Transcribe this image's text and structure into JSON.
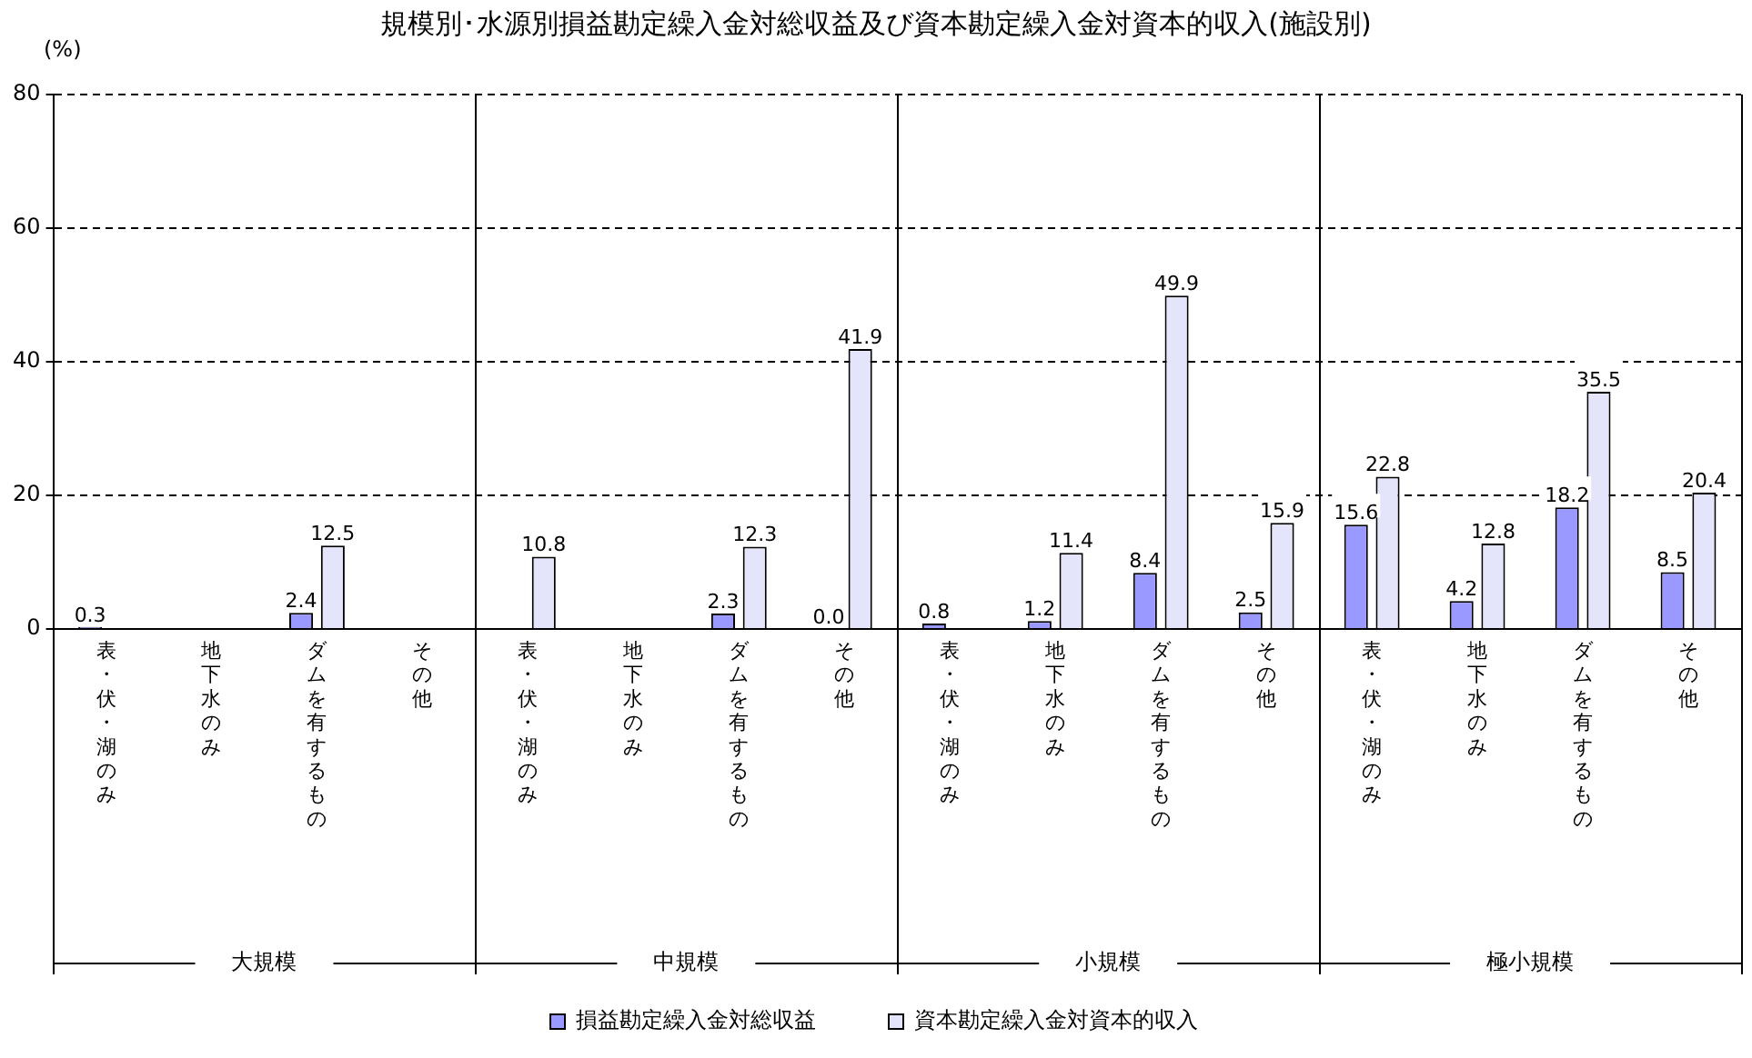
{
  "chart_data": {
    "type": "bar",
    "title": "規模別･水源別損益勘定繰入金対総収益及び資本勘定繰入金対資本的収入(施設別)",
    "ylabel": "(%)",
    "categories": [
      "表・伏・湖のみ",
      "地下水のみ",
      "ダムを有するもの",
      "その他",
      "表・伏・湖のみ",
      "地下水のみ",
      "ダムを有するもの",
      "その他",
      "表・伏・湖のみ",
      "地下水のみ",
      "ダムを有するもの",
      "その他",
      "表・伏・湖のみ",
      "地下水のみ",
      "ダムを有するもの",
      "その他"
    ],
    "series": [
      {
        "name": "損益勘定繰入金対総収益",
        "color": "#9999ff",
        "values": [
          0.3,
          null,
          2.4,
          null,
          null,
          null,
          2.3,
          0.0,
          0.8,
          1.2,
          8.4,
          2.5,
          15.6,
          4.2,
          18.2,
          8.5
        ],
        "value_labels": [
          "0.3",
          null,
          "2.4",
          null,
          null,
          null,
          "2.3",
          "0.0",
          "0.8",
          "1.2",
          "8.4",
          "2.5",
          "15.6",
          "4.2",
          "18.2",
          "8.5"
        ]
      },
      {
        "name": "資本勘定繰入金対資本的収入",
        "color": "#e4e4fa",
        "values": [
          null,
          null,
          12.5,
          null,
          10.8,
          null,
          12.3,
          41.9,
          null,
          11.4,
          49.9,
          15.9,
          22.8,
          12.8,
          35.5,
          20.4
        ],
        "value_labels": [
          null,
          null,
          "12.5",
          null,
          "10.8",
          null,
          "12.3",
          "41.9",
          null,
          "11.4",
          "49.9",
          "15.9",
          "22.8",
          "12.8",
          "35.5",
          "20.4"
        ]
      }
    ],
    "ylim": [
      0,
      80
    ],
    "yticks": [
      0,
      20,
      40,
      60,
      80
    ],
    "grid": "y",
    "legend": "bottom",
    "annotations": [
      "大規模",
      "中規模",
      "小規模",
      "極小規模"
    ]
  }
}
